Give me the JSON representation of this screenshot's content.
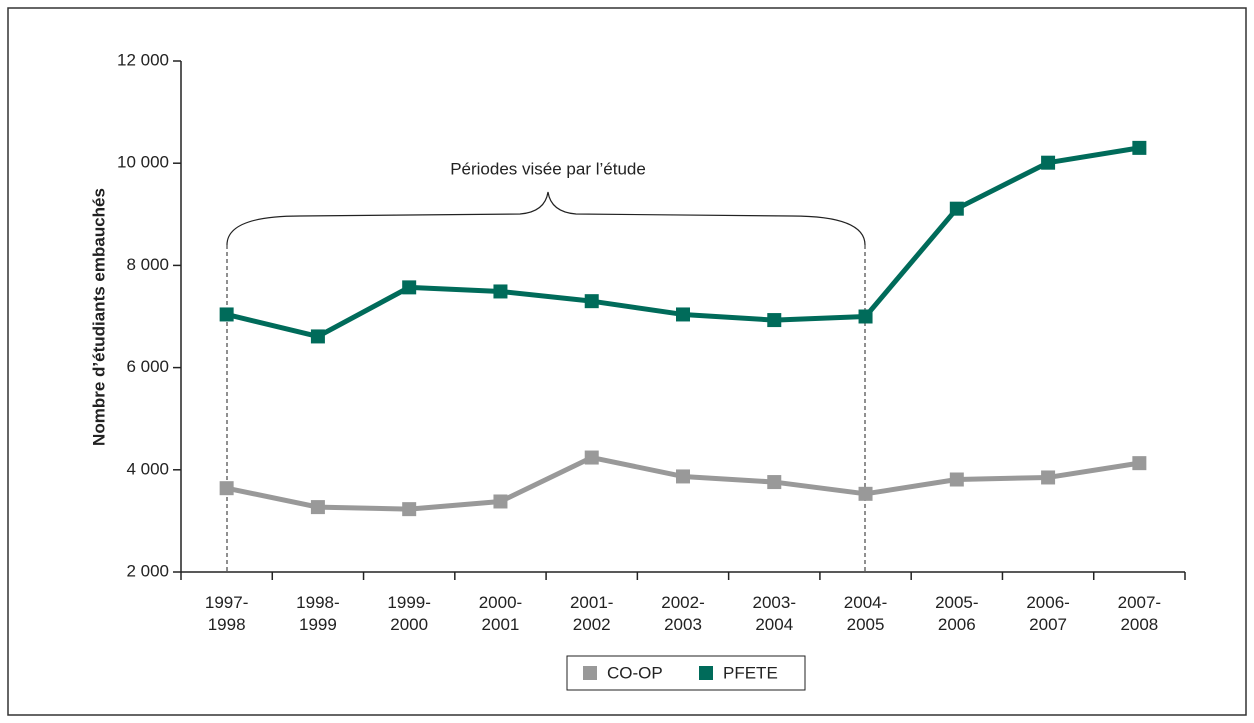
{
  "chart_data": {
    "type": "line",
    "y_label": "Nombre d’étudiants embauchés",
    "annotation": "Périodes visée par l’étude",
    "categories": [
      "1997-\n1998",
      "1998-\n1999",
      "1999-\n2000",
      "2000-\n2001",
      "2001-\n2002",
      "2002-\n2003",
      "2003-\n2004",
      "2004-\n2005",
      "2005-\n2006",
      "2006-\n2007",
      "2007-\n2008"
    ],
    "series": [
      {
        "name": "CO-OP",
        "color": "#999999",
        "values": [
          3640,
          3270,
          3230,
          3380,
          4240,
          3870,
          3760,
          3530,
          3810,
          3850,
          4130
        ]
      },
      {
        "name": "PFETE",
        "color": "#006b5a",
        "values": [
          7040,
          6610,
          7570,
          7490,
          7300,
          7040,
          6930,
          7000,
          9110,
          10010,
          10300
        ]
      }
    ],
    "ylim": [
      2000,
      12000
    ],
    "yticks": [
      {
        "value": 2000,
        "label": "2 000"
      },
      {
        "value": 4000,
        "label": "4 000"
      },
      {
        "value": 6000,
        "label": "6 000"
      },
      {
        "value": 8000,
        "label": "8 000"
      },
      {
        "value": 10000,
        "label": "10 000"
      },
      {
        "value": 12000,
        "label": "12 000"
      }
    ],
    "legend": "bottom"
  }
}
